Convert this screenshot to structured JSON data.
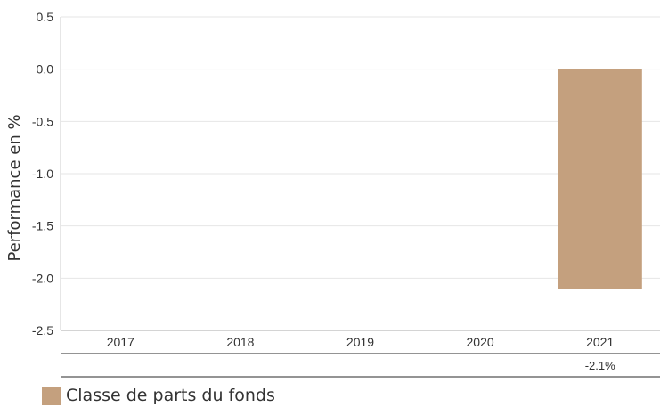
{
  "chart_data": {
    "type": "bar",
    "categories": [
      "2017",
      "2018",
      "2019",
      "2020",
      "2021"
    ],
    "series": [
      {
        "name": "Classe de parts du fonds",
        "values": [
          null,
          null,
          null,
          null,
          -2.1
        ],
        "color": "#c4a07e"
      }
    ],
    "ylabel": "Performance en %",
    "ylim": [
      -2.5,
      0.5
    ],
    "yticks": [
      "0.5",
      "0.0",
      "-0.5",
      "-1.0",
      "-1.5",
      "-2.0",
      "-2.5"
    ],
    "table_row": [
      "",
      "",
      "",
      "",
      "-2.1%"
    ],
    "grid": true,
    "legend_position": "bottom-left"
  }
}
